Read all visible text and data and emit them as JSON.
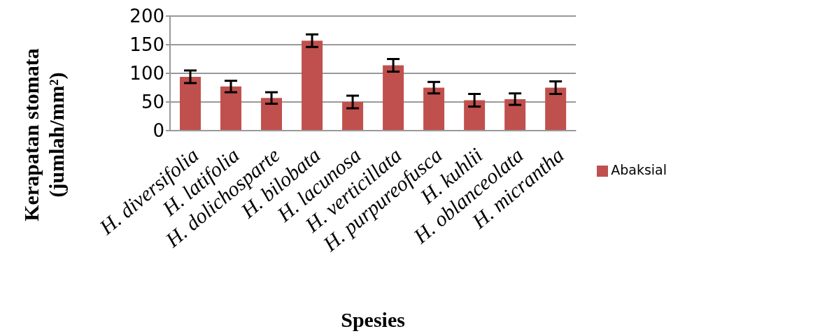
{
  "chart_data": {
    "type": "bar",
    "xlabel": "Spesies",
    "ylabel": "Kerapatan stomata (jumlah/mm²)",
    "categories": [
      "H. diversifolia",
      "H. latifolia",
      "H. dolichosparte",
      "H. bilobata",
      "H. lacunosa",
      "H. verticillata",
      "H. purpureofusca",
      "H. kuhlii",
      "H. oblanceolata",
      "H. micrantha"
    ],
    "series": [
      {
        "name": "Abaksial",
        "color": "#c0504d",
        "values": [
          94,
          77,
          57,
          157,
          50,
          114,
          75,
          53,
          55,
          75
        ],
        "errors": [
          11,
          10,
          10,
          11,
          11,
          11,
          10,
          11,
          10,
          11
        ]
      }
    ],
    "ylim": [
      0,
      200
    ],
    "yticks": [
      0,
      50,
      100,
      150,
      200
    ],
    "grid": "y",
    "legend": "right"
  }
}
